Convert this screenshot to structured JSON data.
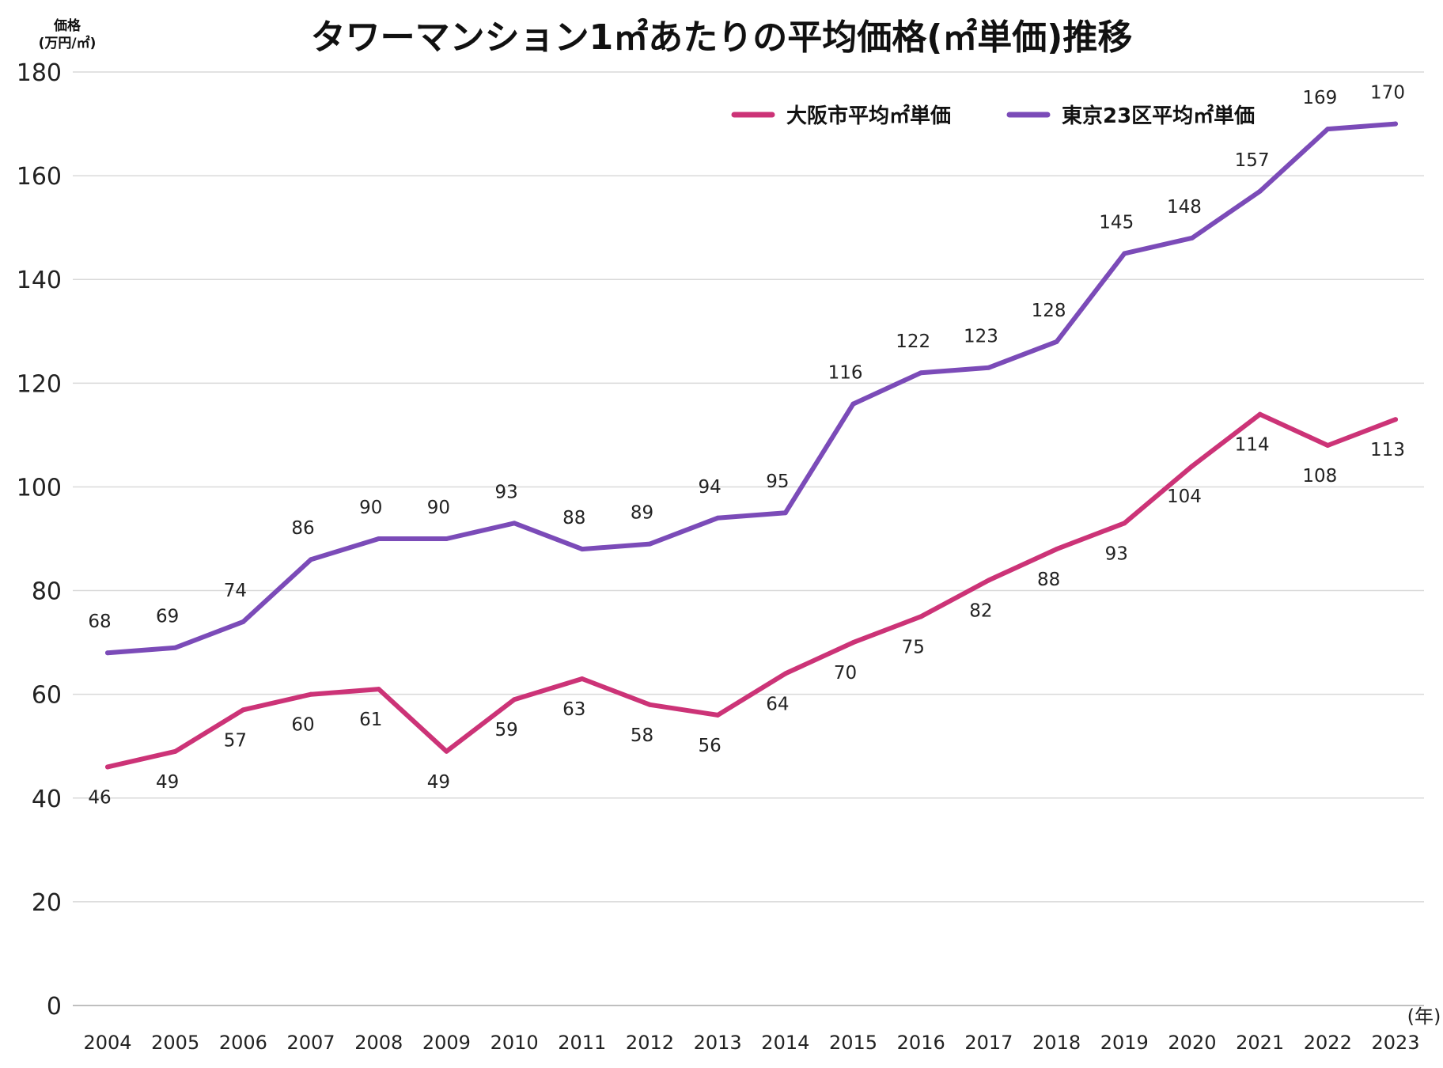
{
  "chart_data": {
    "type": "line",
    "title": "タワーマンション1㎡あたりの平均価格(㎡単価)推移",
    "ylabel_line1": "価格",
    "ylabel_line2": "(万円/㎡)",
    "xlabel": "(年)",
    "ylim": [
      0,
      180
    ],
    "yticks": [
      0,
      20,
      40,
      60,
      80,
      100,
      120,
      140,
      160,
      180
    ],
    "categories": [
      "2004",
      "2005",
      "2006",
      "2007",
      "2008",
      "2009",
      "2010",
      "2011",
      "2012",
      "2013",
      "2014",
      "2015",
      "2016",
      "2017",
      "2018",
      "2019",
      "2020",
      "2021",
      "2022",
      "2023"
    ],
    "grid": true,
    "legend_position": "top-right",
    "series": [
      {
        "name": "大阪市平均㎡単価",
        "color": "#cc3377",
        "label_position": "below",
        "values": [
          46,
          49,
          57,
          60,
          61,
          49,
          59,
          63,
          58,
          56,
          64,
          70,
          75,
          82,
          88,
          93,
          104,
          114,
          108,
          113
        ]
      },
      {
        "name": "東京23区平均㎡単価",
        "color": "#7b4bb8",
        "label_position": "above",
        "values": [
          68,
          69,
          74,
          86,
          90,
          90,
          93,
          88,
          89,
          94,
          95,
          116,
          122,
          123,
          128,
          145,
          148,
          157,
          169,
          170
        ]
      }
    ]
  }
}
